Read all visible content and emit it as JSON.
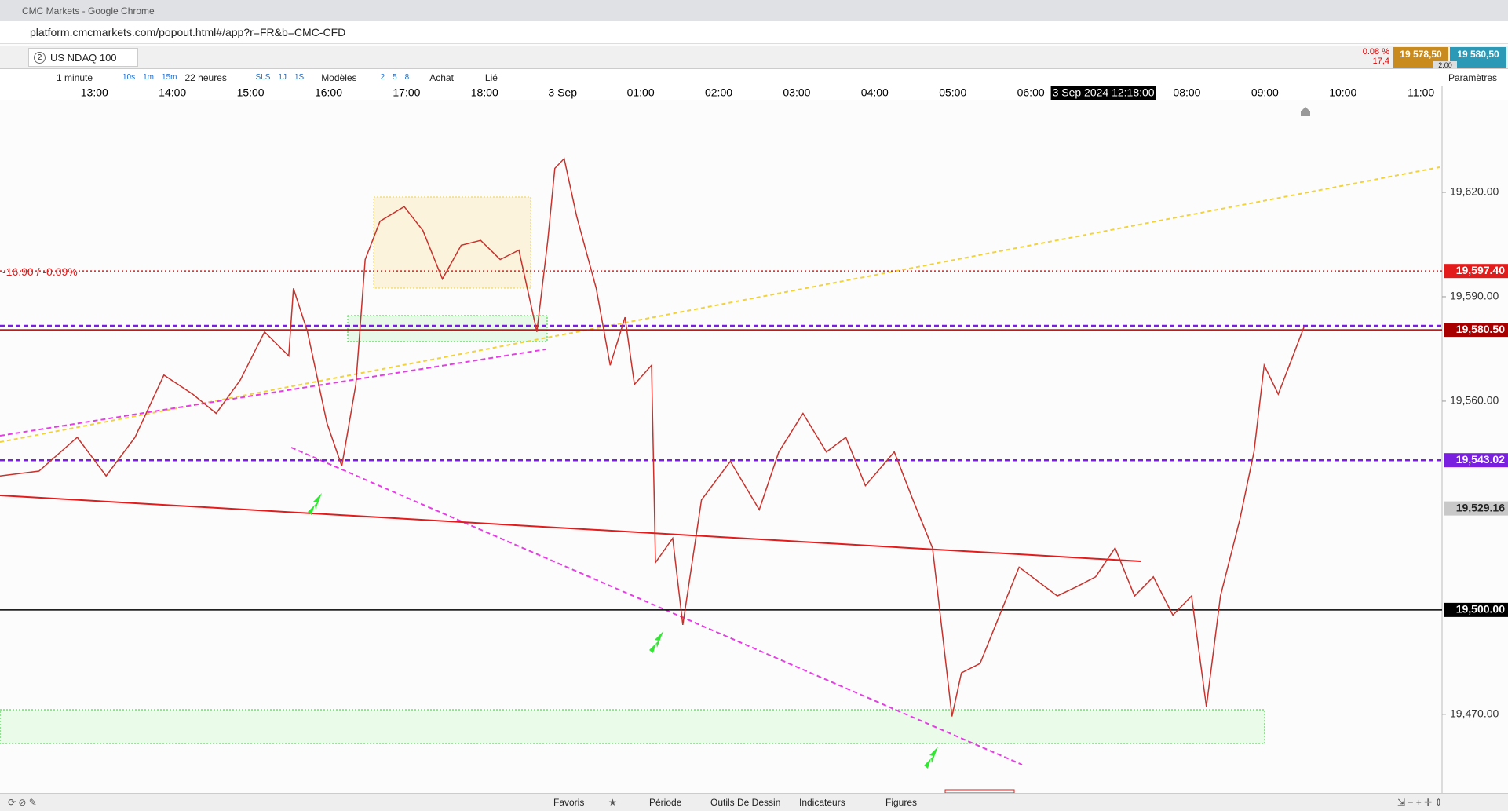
{
  "window": {
    "title": "CMC Markets - Google Chrome",
    "url": "platform.cmcmarkets.com/popout.html#/app?r=FR&b=CMC-CFD"
  },
  "instrument": {
    "badge": "2",
    "name": "US NDAQ 100",
    "change_pct": "0.08 %",
    "change": "17,4",
    "sell": "19 578,50",
    "buy": "19 580,50",
    "spread": "2.00"
  },
  "toolbar": {
    "interval": "1 minute",
    "intervals": [
      "10s",
      "1m",
      "15m"
    ],
    "range": "22 heures",
    "range_buttons": [
      "SLS",
      "1J",
      "1S"
    ],
    "models": "Modèles",
    "counts": [
      "2",
      "5",
      "8"
    ],
    "buy": "Achat",
    "linked": "Lié",
    "settings": "Paramètres"
  },
  "chart_data": {
    "type": "line",
    "color": "#c8322c",
    "x": [
      -0.21,
      0.29,
      0.78,
      1.15,
      1.52,
      1.89,
      2.26,
      2.56,
      2.87,
      3.18,
      3.49,
      3.55,
      3.73,
      3.98,
      4.17,
      4.35,
      4.47,
      4.66,
      4.97,
      5.21,
      5.46,
      5.7,
      5.95,
      6.2,
      6.44,
      6.67,
      6.81,
      6.9,
      7.02,
      7.18,
      7.43,
      7.61,
      7.8,
      7.92,
      8.14,
      8.19,
      8.41,
      8.54,
      8.78,
      9.15,
      9.52,
      9.77,
      10.08,
      10.38,
      10.63,
      10.88,
      11.25,
      11.49,
      11.74,
      11.84,
      11.99,
      12.11,
      12.35,
      12.6,
      12.85,
      13.34,
      13.59,
      13.83,
      14.08,
      14.33,
      14.57,
      14.82,
      15.06,
      15.25,
      15.43,
      15.68,
      15.86,
      15.99,
      16.17,
      16.36,
      16.5
    ],
    "values": [
      19538.5,
      19539.9,
      19549.6,
      19538.5,
      19549.6,
      19567.5,
      19562,
      19556.5,
      19566.1,
      19579.9,
      19573,
      19592.4,
      19579.9,
      19553.7,
      19541.3,
      19564.8,
      19600.7,
      19611.7,
      19615.9,
      19609,
      19595.1,
      19604.8,
      19606.2,
      19600.7,
      19603.4,
      19579.9,
      19606.2,
      19626.9,
      19629.7,
      19613.1,
      19592.4,
      19570.3,
      19584.1,
      19564.8,
      19570.3,
      19513.6,
      19520.6,
      19495.7,
      19531.6,
      19542.7,
      19528.8,
      19545.4,
      19556.5,
      19545.4,
      19549.6,
      19535.7,
      19545.4,
      19531.6,
      19517.8,
      19498.5,
      19469.4,
      19481.9,
      19484.6,
      19498.5,
      19512.3,
      19504,
      19506.7,
      19509.5,
      19517.8,
      19504,
      19509.5,
      19498.5,
      19504,
      19472.2,
      19504,
      19526.1,
      19545.4,
      19570.3,
      19562,
      19573,
      19581.3
    ],
    "xlim": [
      -0.21,
      18.27
    ],
    "ylim": [
      19447.4,
      19646.4
    ],
    "xticks": [
      {
        "value": 1,
        "label": "13:00"
      },
      {
        "value": 2,
        "label": "14:00"
      },
      {
        "value": 3,
        "label": "15:00"
      },
      {
        "value": 4,
        "label": "16:00"
      },
      {
        "value": 5,
        "label": "17:00"
      },
      {
        "value": 6,
        "label": "18:00"
      },
      {
        "value": 7,
        "label": "3 Sep"
      },
      {
        "value": 8,
        "label": "01:00"
      },
      {
        "value": 9,
        "label": "02:00"
      },
      {
        "value": 10,
        "label": "03:00"
      },
      {
        "value": 11,
        "label": "04:00"
      },
      {
        "value": 12,
        "label": "05:00"
      },
      {
        "value": 13,
        "label": "06:00"
      },
      {
        "value": 15,
        "label": "08:00"
      },
      {
        "value": 16,
        "label": "09:00"
      },
      {
        "value": 17,
        "label": "10:00"
      },
      {
        "value": 18,
        "label": "11:00"
      }
    ],
    "yticks": [
      {
        "value": 19620,
        "label": "19,620.00"
      },
      {
        "value": 19590,
        "label": "19,590.00"
      },
      {
        "value": 19560,
        "label": "19,560.00"
      },
      {
        "value": 19470,
        "label": "19,470.00"
      }
    ],
    "cursor_label": "3 Sep 2024 12:18:00",
    "change_label": "-16.90 / -0.09%",
    "price_lines": [
      {
        "value": 19597.4,
        "label": "19,597.40",
        "color": "#e31b1b",
        "line": "dotted"
      },
      {
        "value": 19580.5,
        "label": "19,580.50",
        "color": "#a80000",
        "line": "solid"
      },
      {
        "value": 19543.02,
        "label": "19,543.02",
        "color": "#7a1fe0",
        "line": "dashed"
      },
      {
        "value": 19529.16,
        "label": "19,529.16",
        "color": "#c8c8c8",
        "line": "none"
      },
      {
        "value": 19500,
        "label": "19,500.00",
        "color": "#000000",
        "line": "solid"
      }
    ]
  },
  "bottom_bar": {
    "tabs": [
      "Favoris",
      "Période",
      "Outils De Dessin",
      "Indicateurs",
      "Figures"
    ]
  }
}
